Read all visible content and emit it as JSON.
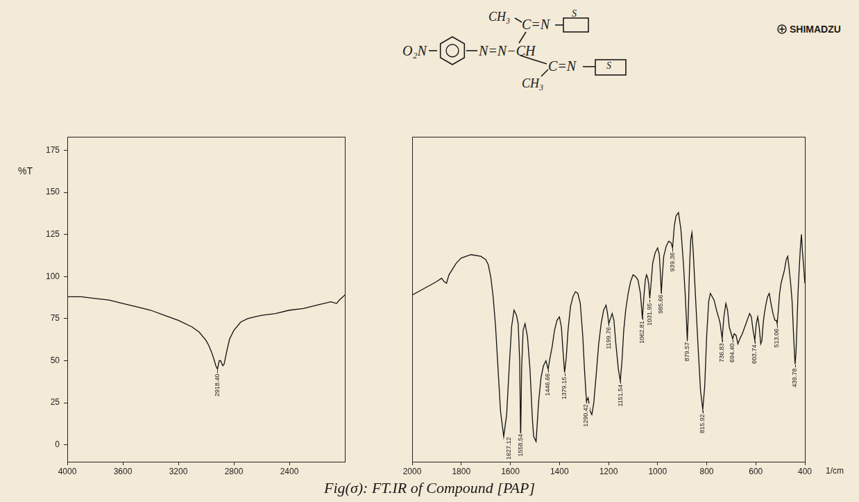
{
  "chart_data": {
    "type": "line",
    "title": "Fig(σ): FT.IR of Compound [PAP]",
    "x_label": "1/cm",
    "y_label": "%T",
    "color": "#111111",
    "grid": false,
    "xlim": [
      4000,
      400
    ],
    "xticks": [
      4000,
      3600,
      3200,
      2800,
      2400,
      2000,
      1800,
      1600,
      1400,
      1200,
      1000,
      800,
      600,
      400
    ],
    "ylim": [
      -10,
      183
    ],
    "yticks": [
      0,
      25,
      50,
      75,
      100,
      125,
      150,
      175
    ],
    "x": [
      4000,
      3900,
      3800,
      3700,
      3600,
      3500,
      3400,
      3300,
      3200,
      3100,
      3050,
      3000,
      2980,
      2960,
      2940,
      2930,
      2918,
      2905,
      2895,
      2880,
      2870,
      2860,
      2850,
      2830,
      2800,
      2750,
      2700,
      2650,
      2600,
      2500,
      2400,
      2300,
      2200,
      2100,
      2060,
      2040,
      2000,
      1950,
      1900,
      1880,
      1870,
      1860,
      1850,
      1820,
      1800,
      1760,
      1720,
      1700,
      1690,
      1680,
      1670,
      1660,
      1650,
      1640,
      1627,
      1615,
      1605,
      1595,
      1585,
      1575,
      1568,
      1562,
      1558,
      1554,
      1548,
      1540,
      1530,
      1520,
      1510,
      1505,
      1495,
      1485,
      1475,
      1465,
      1455,
      1446,
      1438,
      1430,
      1420,
      1410,
      1400,
      1392,
      1385,
      1379,
      1372,
      1365,
      1355,
      1345,
      1335,
      1325,
      1315,
      1305,
      1298,
      1290,
      1283,
      1275,
      1268,
      1260,
      1250,
      1240,
      1230,
      1220,
      1210,
      1204,
      1199,
      1192,
      1185,
      1178,
      1170,
      1160,
      1152,
      1145,
      1138,
      1130,
      1120,
      1110,
      1100,
      1090,
      1080,
      1070,
      1062,
      1056,
      1050,
      1045,
      1040,
      1036,
      1032,
      1026,
      1020,
      1010,
      1000,
      993,
      988,
      985,
      980,
      975,
      965,
      955,
      945,
      939,
      932,
      925,
      915,
      905,
      895,
      887,
      882,
      879,
      875,
      870,
      865,
      860,
      855,
      848,
      840,
      832,
      825,
      816,
      808,
      800,
      792,
      785,
      770,
      760,
      750,
      745,
      737,
      730,
      722,
      715,
      708,
      700,
      694,
      688,
      680,
      673,
      665,
      655,
      645,
      635,
      625,
      618,
      611,
      604,
      598,
      592,
      586,
      580,
      575,
      570,
      565,
      558,
      552,
      545,
      538,
      530,
      522,
      516,
      513,
      508,
      503,
      497,
      490,
      483,
      476,
      470,
      465,
      458,
      452,
      446,
      440,
      436,
      432,
      428,
      423,
      418,
      414,
      410,
      406,
      402,
      400
    ],
    "values": [
      88,
      88,
      87,
      86,
      84,
      82,
      80,
      77,
      74,
      70,
      67,
      62,
      59,
      55,
      50,
      47,
      45,
      50,
      50,
      47,
      48,
      52,
      56,
      63,
      68,
      73,
      75,
      76,
      77,
      78,
      80,
      81,
      83,
      85,
      84,
      86,
      89,
      93,
      97,
      99,
      97,
      96,
      101,
      108,
      111,
      113,
      112,
      110,
      107,
      100,
      88,
      70,
      45,
      20,
      5,
      18,
      45,
      70,
      80,
      77,
      72,
      50,
      3,
      45,
      68,
      72,
      64,
      45,
      15,
      5,
      2,
      25,
      40,
      47,
      50,
      45,
      52,
      58,
      68,
      74,
      76,
      70,
      55,
      43,
      52,
      68,
      82,
      88,
      91,
      90,
      84,
      65,
      45,
      26,
      28,
      20,
      18,
      25,
      42,
      60,
      72,
      80,
      83,
      78,
      72,
      75,
      78,
      74,
      60,
      45,
      38,
      50,
      68,
      80,
      90,
      97,
      101,
      100,
      98,
      90,
      75,
      88,
      98,
      101,
      99,
      95,
      87,
      97,
      108,
      114,
      117,
      113,
      100,
      90,
      102,
      112,
      118,
      121,
      120,
      117,
      130,
      136,
      138,
      128,
      108,
      88,
      72,
      62,
      78,
      105,
      122,
      126,
      115,
      95,
      72,
      50,
      32,
      21,
      35,
      65,
      85,
      90,
      86,
      80,
      75,
      72,
      63,
      76,
      84,
      80,
      70,
      66,
      63,
      66,
      65,
      60,
      63,
      66,
      70,
      74,
      78,
      76,
      68,
      62,
      72,
      76,
      70,
      60,
      62,
      72,
      78,
      84,
      88,
      90,
      84,
      78,
      74,
      74,
      72,
      80,
      90,
      96,
      100,
      104,
      110,
      112,
      106,
      96,
      85,
      65,
      48,
      55,
      72,
      90,
      105,
      118,
      125,
      115,
      108,
      100,
      96
    ],
    "annotations": [
      {
        "x": 2918.4,
        "label": "2918.40"
      },
      {
        "x": 1627.12,
        "label": "1627.12"
      },
      {
        "x": 1558.54,
        "label": "1558.54"
      },
      {
        "x": 1446.66,
        "label": "1446.66"
      },
      {
        "x": 1379.15,
        "label": "1379.15"
      },
      {
        "x": 1290.42,
        "label": "1290.42"
      },
      {
        "x": 1199.76,
        "label": "1199.76"
      },
      {
        "x": 1151.54,
        "label": "1151.54"
      },
      {
        "x": 1062.81,
        "label": "1062.81"
      },
      {
        "x": 1031.95,
        "label": "1031.95"
      },
      {
        "x": 985.66,
        "label": "985.66"
      },
      {
        "x": 939.36,
        "label": "939.36"
      },
      {
        "x": 879.57,
        "label": "879.57"
      },
      {
        "x": 815.92,
        "label": "815.92"
      },
      {
        "x": 736.83,
        "label": "736.83"
      },
      {
        "x": 694.4,
        "label": "694.40"
      },
      {
        "x": 603.74,
        "label": "603.74"
      },
      {
        "x": 513.06,
        "label": "513.06"
      },
      {
        "x": 439.78,
        "label": "439.78"
      }
    ]
  },
  "header": {
    "brand": "SHIMADZU"
  },
  "structure": {
    "nitro": "O₂N",
    "azo": "N=N−CH",
    "methyl": "CH₃",
    "imine": "C=N",
    "sulfur": "S"
  }
}
